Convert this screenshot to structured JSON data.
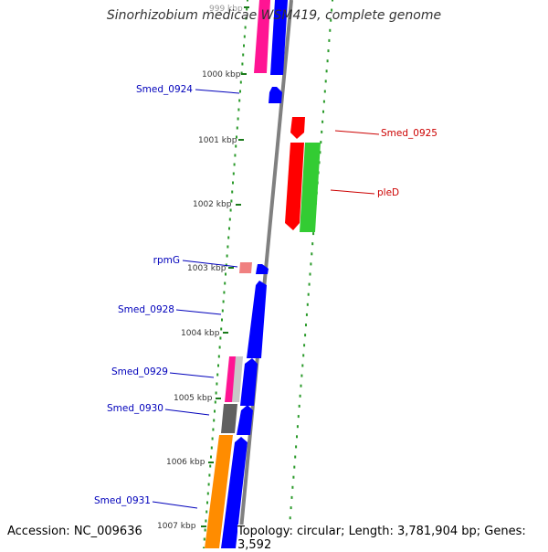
{
  "title": "Sinorhizobium medicae WSM419, complete genome",
  "footer": {
    "accession": "Accession: NC_009636",
    "topology": "Topology: circular; Length: 3,781,904 bp; Genes: 3,592"
  },
  "colors": {
    "backbone": "#808080",
    "left_label": "#0000bb",
    "right_label": "#cc0000",
    "tick": "#1a7a1a",
    "dots": "#2a9a2a"
  },
  "ticks": [
    "999 kbp",
    "1000 kbp",
    "1001 kbp",
    "1002 kbp",
    "1003 kbp",
    "1004 kbp",
    "1005 kbp",
    "1006 kbp",
    "1007 kbp"
  ],
  "genes_left": [
    {
      "label": "Smed_0924",
      "color": "#0000bb"
    },
    {
      "label": "rpmG",
      "color": "#0000bb"
    },
    {
      "label": "Smed_0928",
      "color": "#0000bb"
    },
    {
      "label": "Smed_0929",
      "color": "#0000bb"
    },
    {
      "label": "Smed_0930",
      "color": "#0000bb"
    },
    {
      "label": "Smed_0931",
      "color": "#0000bb"
    }
  ],
  "genes_right": [
    {
      "label": "Smed_0925",
      "color": "#cc0000"
    },
    {
      "label": "pleD",
      "color": "#cc0000"
    }
  ],
  "features": [
    {
      "name": "pink-feature-top",
      "color": "#ff1493"
    },
    {
      "name": "blue-feature-top",
      "color": "#0000ff"
    },
    {
      "name": "blue-small-arrow",
      "color": "#0000ff"
    },
    {
      "name": "red-small-arrow",
      "color": "#ff0000"
    },
    {
      "name": "red-gene-pled",
      "color": "#ff0000"
    },
    {
      "name": "green-feature",
      "color": "#33cc33"
    },
    {
      "name": "rpmg-light-red",
      "color": "#f08080"
    },
    {
      "name": "blue-small-arrow-2",
      "color": "#0000ff"
    },
    {
      "name": "blue-long-arrow",
      "color": "#0000ff"
    },
    {
      "name": "pink-feature-mid",
      "color": "#ff1493"
    },
    {
      "name": "gray-light-feature",
      "color": "#c8c8c8"
    },
    {
      "name": "blue-arrow-mid",
      "color": "#0000ff"
    },
    {
      "name": "dark-gray-feature",
      "color": "#606060"
    },
    {
      "name": "blue-arrow-lower",
      "color": "#0000ff"
    },
    {
      "name": "orange-feature",
      "color": "#ff8c00"
    },
    {
      "name": "blue-feature-bottom",
      "color": "#0000ff"
    }
  ]
}
